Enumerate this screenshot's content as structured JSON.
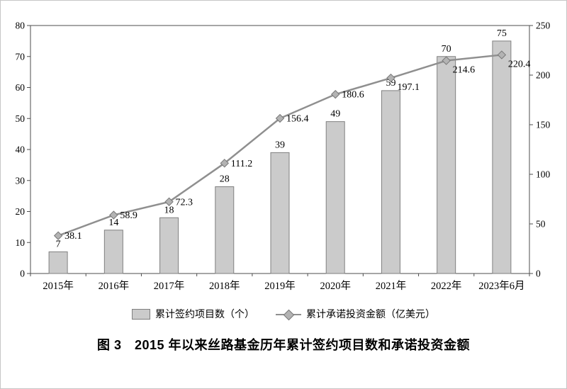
{
  "caption": "图 3　2015 年以来丝路基金历年累计签约项目数和承诺投资金额",
  "legend": {
    "bar_label": "累计签约项目数（个）",
    "line_label": "累计承诺投资金额（亿美元）"
  },
  "chart_data": {
    "type": "bar",
    "subtype": "bar+line combo, dual axis",
    "title": "图 3　2015 年以来丝路基金历年累计签约项目数和承诺投资金额",
    "categories": [
      "2015年",
      "2016年",
      "2017年",
      "2018年",
      "2019年",
      "2020年",
      "2021年",
      "2022年",
      "2023年6月"
    ],
    "series": [
      {
        "name": "累计签约项目数（个）",
        "type": "bar",
        "axis": "left",
        "values": [
          7,
          14,
          18,
          28,
          39,
          49,
          59,
          70,
          75
        ],
        "fill": "#cbcbcb",
        "stroke": "#808080"
      },
      {
        "name": "累计承诺投资金额（亿美元）",
        "type": "line",
        "axis": "right",
        "values": [
          38.1,
          58.9,
          72.3,
          111.2,
          156.4,
          180.6,
          197.1,
          214.6,
          220.4
        ],
        "color": "#8f8f8f",
        "marker": "diamond",
        "marker_fill": "#b3b3b3",
        "marker_stroke": "#777777"
      }
    ],
    "left_axis": {
      "min": 0,
      "max": 80,
      "ticks": [
        0,
        10,
        20,
        30,
        40,
        50,
        60,
        70,
        80
      ]
    },
    "right_axis": {
      "min": 0,
      "max": 250,
      "ticks": [
        0,
        50,
        100,
        150,
        200,
        250
      ]
    },
    "grid": false,
    "legend_position": "bottom",
    "data_labels": true
  }
}
